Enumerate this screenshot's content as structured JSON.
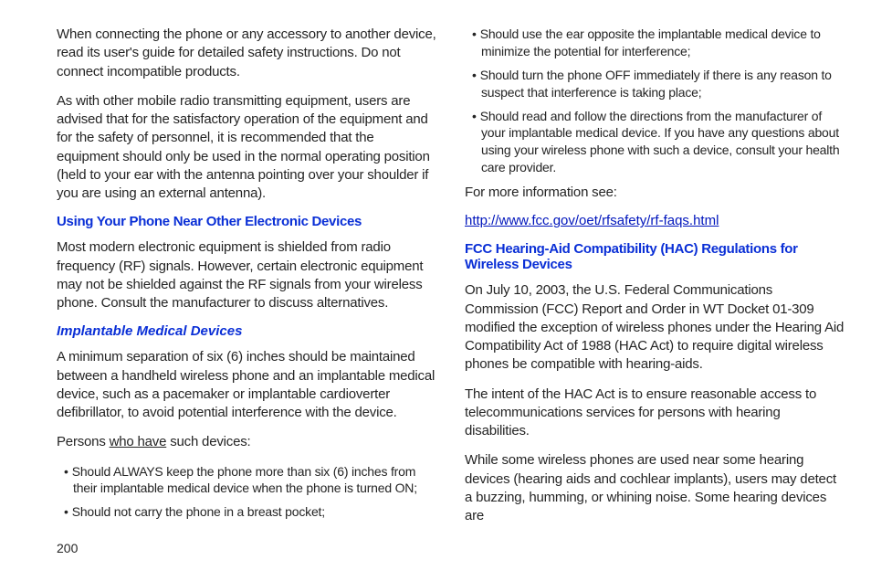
{
  "page_number": "200",
  "left_column": {
    "p1": "When connecting the phone or any accessory to another device, read its user's guide for detailed safety instructions. Do not connect incompatible products.",
    "p2": "As with other mobile radio transmitting equipment, users are advised that for the satisfactory operation of the equipment and for the safety of personnel, it is recommended that the equipment should only be used in the normal operating position (held to your ear with the antenna pointing over your shoulder if you are using an external antenna).",
    "h1": "Using Your Phone Near Other Electronic Devices",
    "p3": "Most modern electronic equipment is shielded from radio frequency (RF) signals. However, certain electronic equipment may not be shielded against the RF signals from your wireless phone. Consult the manufacturer to discuss alternatives.",
    "h2": "Implantable Medical Devices",
    "p4": "A minimum separation of six (6) inches should be maintained between a handheld wireless phone and an implantable medical device, such as a pacemaker or implantable cardioverter defibrillator, to avoid potential interference with the device.",
    "p5_pre": "Persons ",
    "p5_underline": "who have",
    "p5_post": " such devices:",
    "bullets": [
      "Should ALWAYS keep the phone more than six (6) inches from their implantable medical device when the phone is turned ON;",
      "Should not carry the phone in a breast pocket;"
    ]
  },
  "right_column": {
    "bullets": [
      "Should use the ear opposite the implantable medical device to minimize the potential for interference;",
      "Should turn the phone OFF immediately if there is any reason to suspect that interference is taking place;",
      "Should read and follow the directions from the manufacturer of your implantable medical device. If you have any questions about using your wireless phone with such a device, consult your health care provider."
    ],
    "p1": "For more information see:",
    "link": "http://www.fcc.gov/oet/rfsafety/rf-faqs.html",
    "h1": "FCC Hearing-Aid Compatibility (HAC) Regulations for Wireless Devices",
    "p2": "On July 10, 2003, the U.S. Federal Communications Commission (FCC) Report and Order in WT Docket 01-309 modified the exception of wireless phones under the Hearing Aid Compatibility Act of 1988 (HAC Act) to require digital wireless phones be compatible with hearing-aids.",
    "p3": "The intent of the HAC Act is to ensure reasonable access to telecommunications services for persons with hearing disabilities.",
    "p4": "While some wireless phones are used near some hearing devices (hearing aids and cochlear implants), users may detect a buzzing, humming, or whining noise. Some hearing devices are"
  }
}
